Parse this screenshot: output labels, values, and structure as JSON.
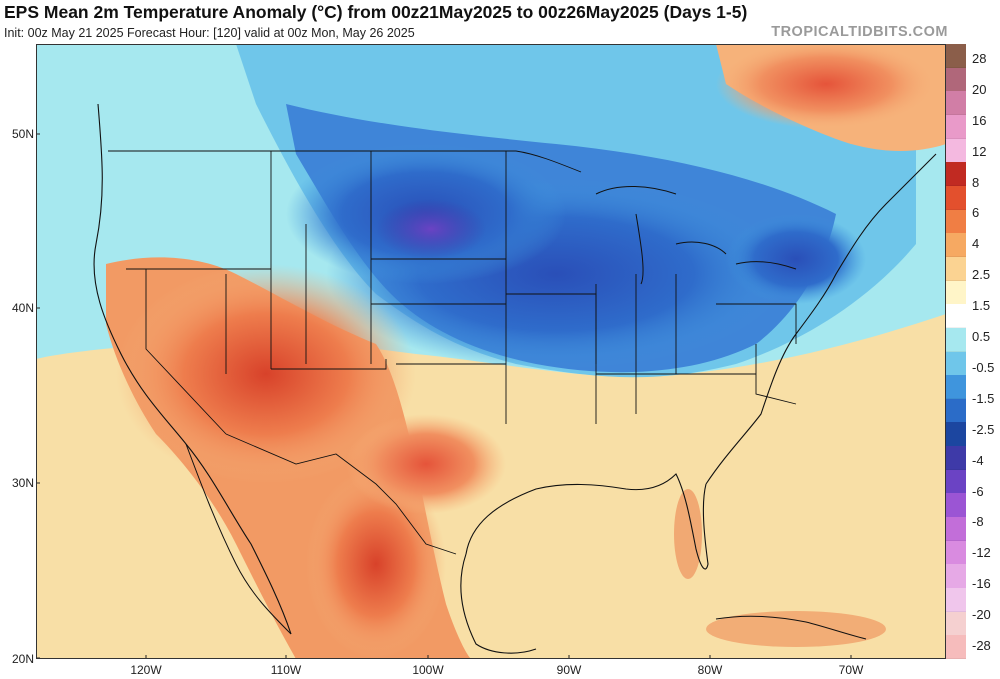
{
  "header": {
    "title": "EPS Mean 2m Temperature Anomaly (°C) from 00z21May2025 to 00z26May2025 (Days 1-5)",
    "subtitle": "Init: 00z May 21 2025   Forecast Hour: [120]   valid at 00z Mon, May 26 2025",
    "brand": "TROPICALTIDBITS.COM"
  },
  "map": {
    "lat_labels": [
      "50N",
      "40N",
      "30N",
      "20N"
    ],
    "lon_labels": [
      "120W",
      "110W",
      "100W",
      "90W",
      "80W",
      "70W"
    ],
    "colors": {
      "ocean_warm": "#f9e1a8",
      "ocean_cool": "#a6e8ef",
      "neutral": "#ffffff",
      "hot": "#e2442a",
      "very_cold": "#1d4fb1"
    }
  },
  "colorbar": {
    "labels": [
      "28",
      "20",
      "16",
      "12",
      "8",
      "6",
      "4",
      "2.5",
      "1.5",
      "0.5",
      "-0.5",
      "-1.5",
      "-2.5",
      "-4",
      "-6",
      "-8",
      "-12",
      "-16",
      "-20",
      "-28"
    ],
    "colors": [
      "#8b5e4a",
      "#b0677a",
      "#d17ea6",
      "#e99ac9",
      "#f4b9e0",
      "#c12a22",
      "#e3502d",
      "#f07e44",
      "#f6a962",
      "#fbd392",
      "#fff5c8",
      "#ffffff",
      "#a6e8ef",
      "#6fc6ea",
      "#3f95dd",
      "#2b6cc8",
      "#1c46a0",
      "#3e3aa8",
      "#6b43c4",
      "#9b55d4",
      "#c26ed9",
      "#d98be0",
      "#e6a9e6",
      "#f0c6ec",
      "#f5d0d0",
      "#f6bcbc"
    ]
  }
}
